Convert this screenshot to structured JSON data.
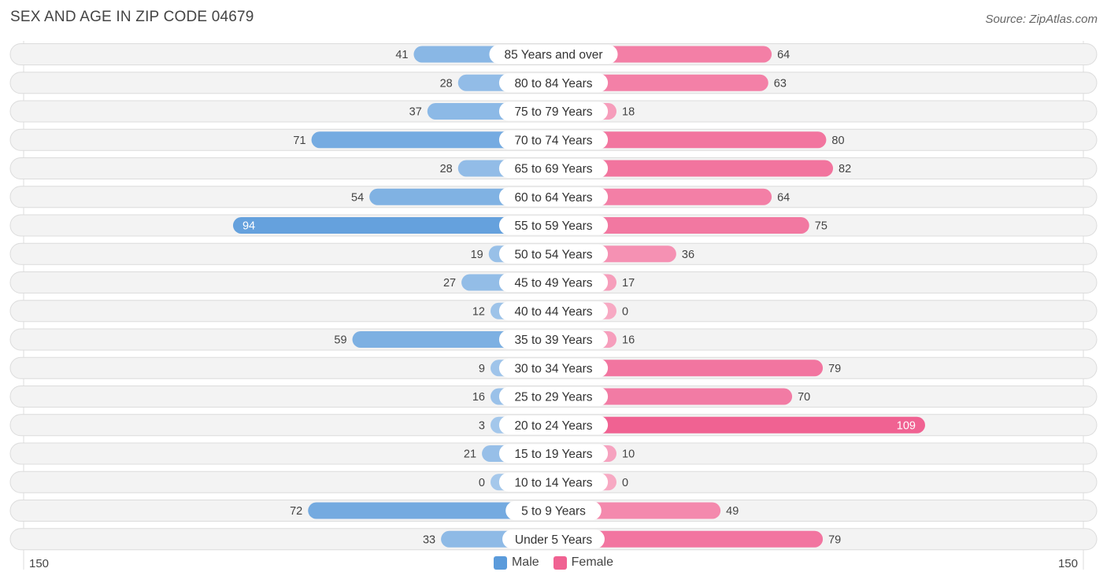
{
  "header": {
    "title": "SEX AND AGE IN ZIP CODE 04679",
    "source": "Source: ZipAtlas.com"
  },
  "chart_data": {
    "type": "bar",
    "orientation": "horizontal-diverging",
    "title": "SEX AND AGE IN ZIP CODE 04679",
    "categories": [
      "85 Years and over",
      "80 to 84 Years",
      "75 to 79 Years",
      "70 to 74 Years",
      "65 to 69 Years",
      "60 to 64 Years",
      "55 to 59 Years",
      "50 to 54 Years",
      "45 to 49 Years",
      "40 to 44 Years",
      "35 to 39 Years",
      "30 to 34 Years",
      "25 to 29 Years",
      "20 to 24 Years",
      "15 to 19 Years",
      "10 to 14 Years",
      "5 to 9 Years",
      "Under 5 Years"
    ],
    "series": [
      {
        "name": "Male",
        "color": "#5b9bdb",
        "values": [
          41,
          28,
          37,
          71,
          28,
          54,
          94,
          19,
          27,
          12,
          59,
          9,
          16,
          3,
          21,
          0,
          72,
          33
        ]
      },
      {
        "name": "Female",
        "color": "#f06292",
        "values": [
          64,
          63,
          18,
          80,
          82,
          64,
          75,
          36,
          17,
          0,
          16,
          79,
          70,
          109,
          10,
          0,
          49,
          79
        ]
      }
    ],
    "axis_min_label": "150",
    "axis_max_label": "150",
    "xlim": [
      -150,
      150
    ],
    "legend_position": "bottom-center"
  }
}
